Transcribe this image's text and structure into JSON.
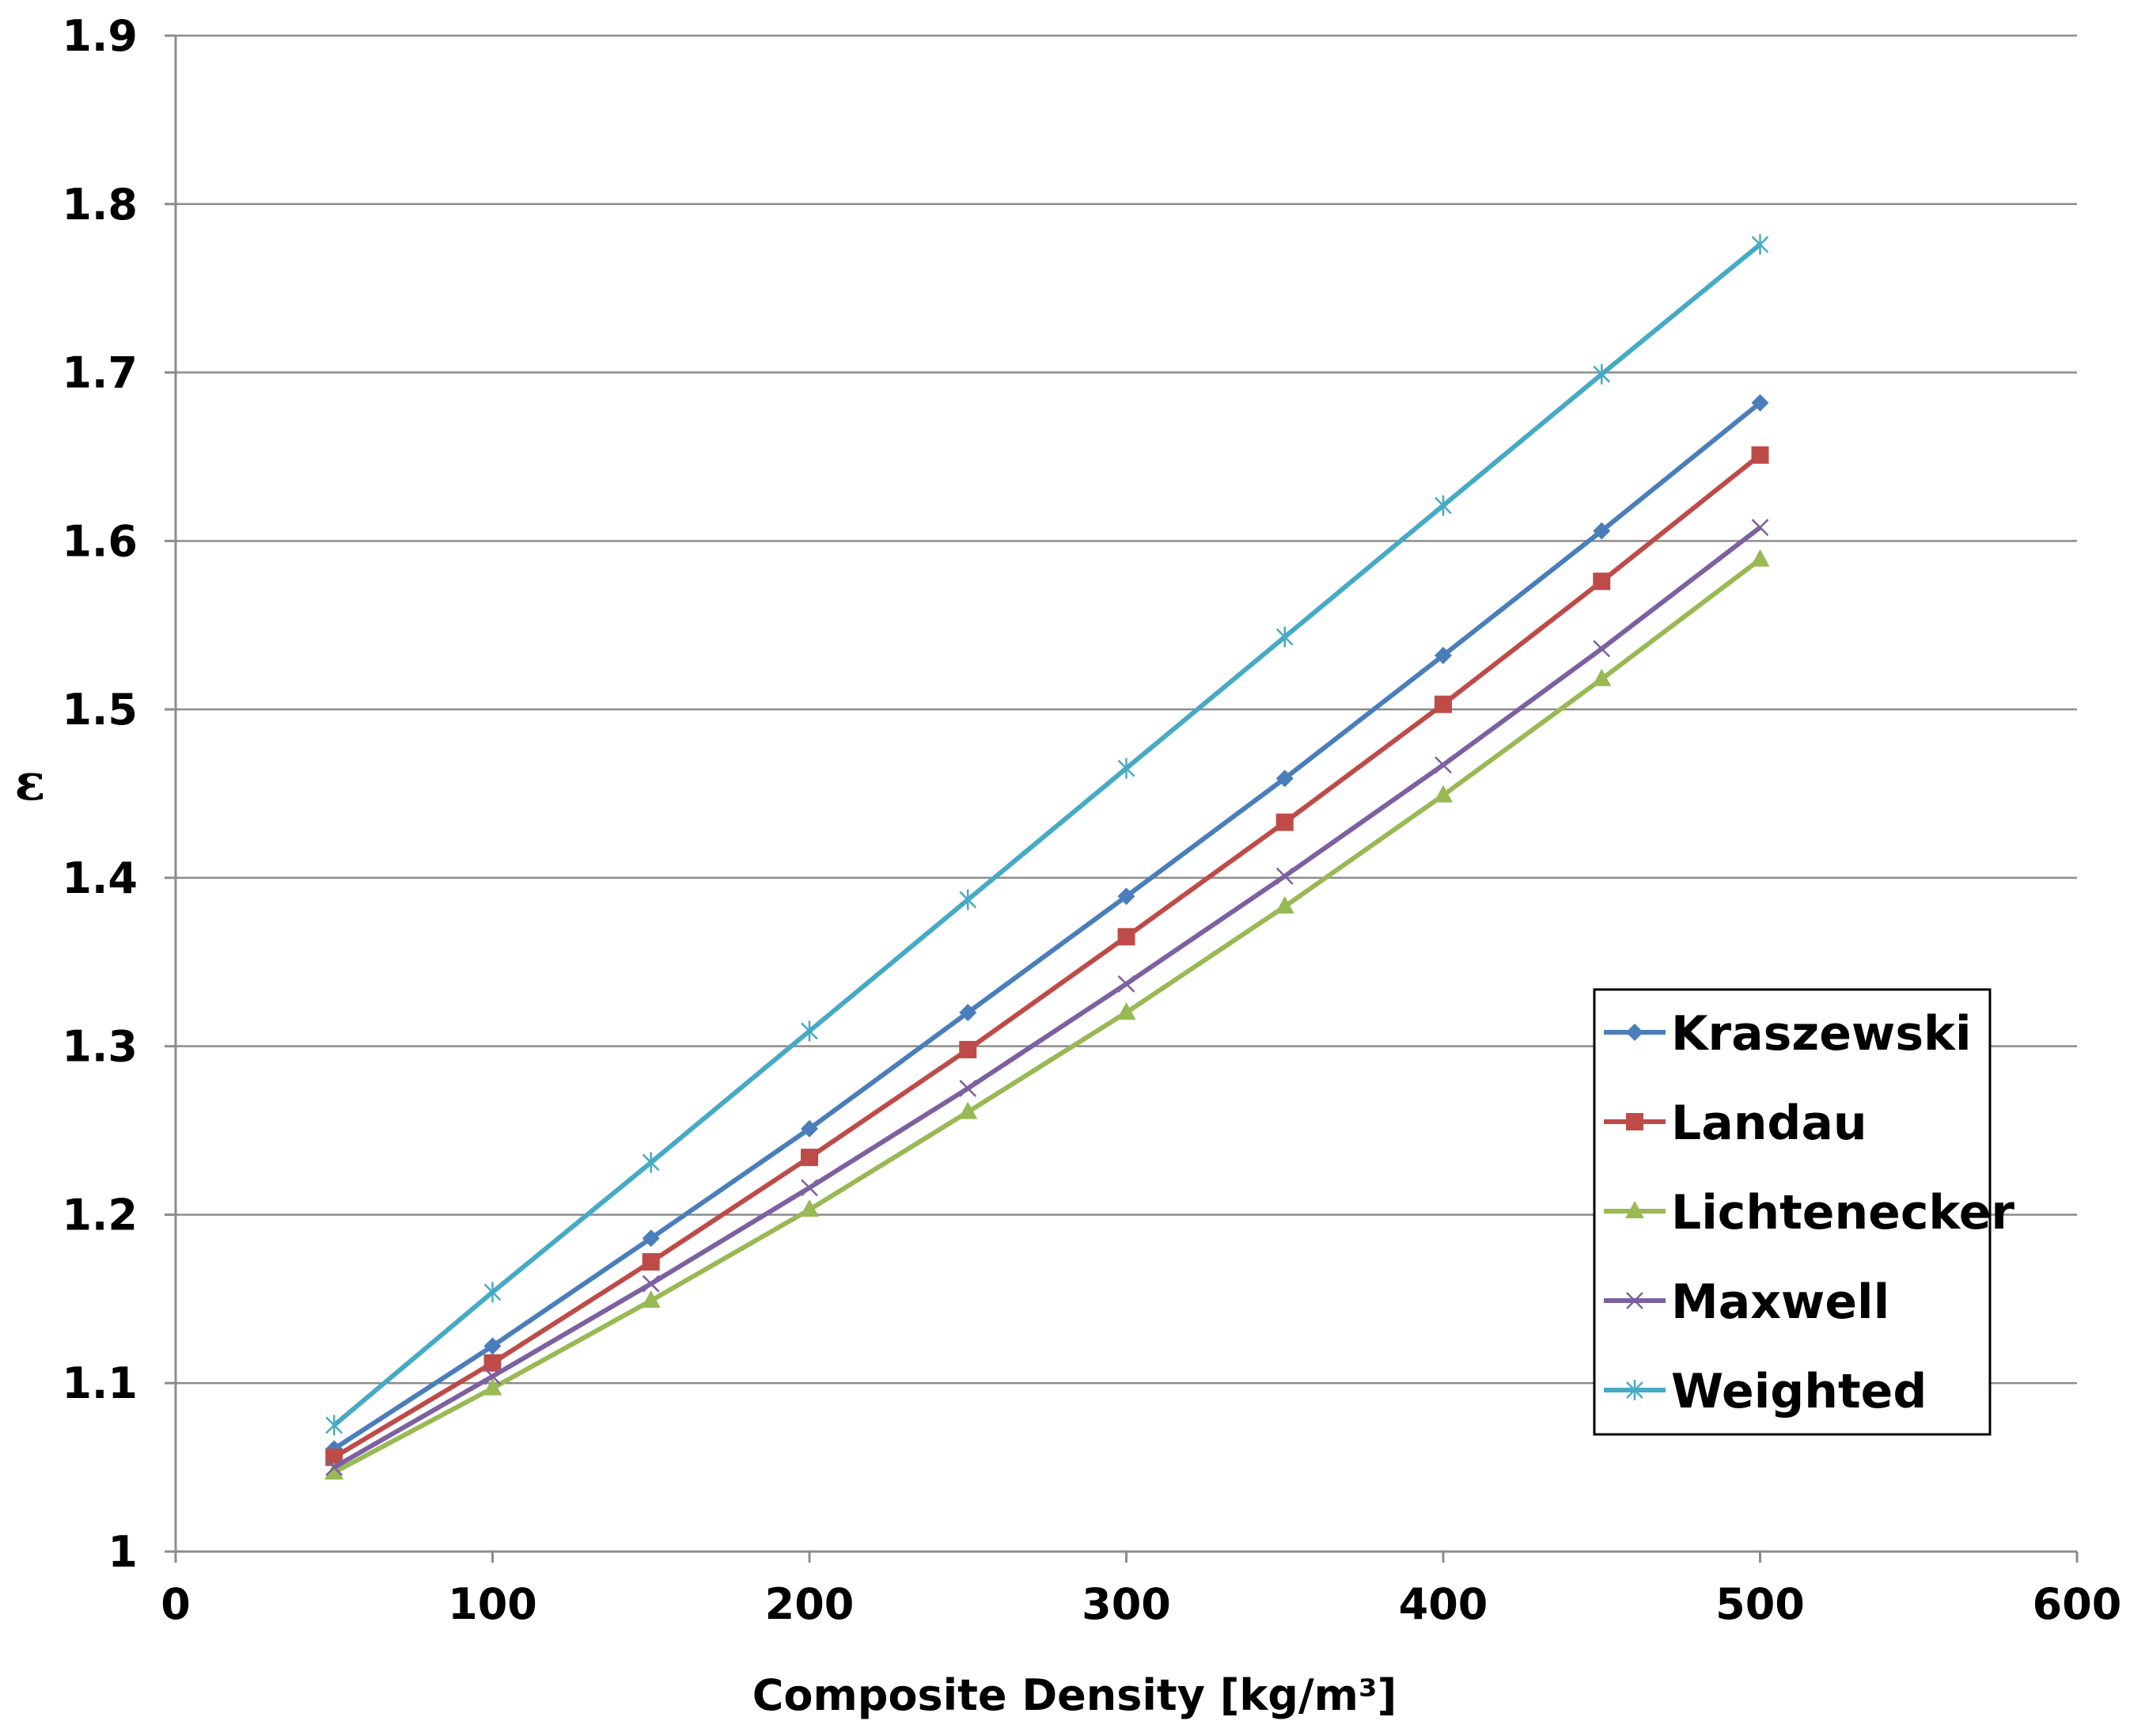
{
  "chart_data": {
    "type": "line",
    "title": "",
    "xlabel": "Composite Density [kg/m³]",
    "ylabel": "ε",
    "xlim": [
      0,
      600
    ],
    "ylim": [
      1,
      1.9
    ],
    "x_ticks": [
      "0",
      "100",
      "200",
      "300",
      "400",
      "500",
      "600"
    ],
    "y_ticks": [
      "1",
      "1.1",
      "1.2",
      "1.3",
      "1.4",
      "1.5",
      "1.6",
      "1.7",
      "1.8",
      "1.9"
    ],
    "grid": true,
    "legend_position": "right",
    "x": [
      50,
      100,
      150,
      200,
      250,
      300,
      350,
      400,
      450,
      500
    ],
    "series": [
      {
        "name": "Kraszewski",
        "color": "#4a7ebb",
        "marker": "diamond",
        "values": [
          1.061,
          1.122,
          1.186,
          1.251,
          1.32,
          1.389,
          1.459,
          1.532,
          1.606,
          1.682
        ]
      },
      {
        "name": "Landau",
        "color": "#be4b48",
        "marker": "square",
        "values": [
          1.056,
          1.112,
          1.172,
          1.234,
          1.298,
          1.365,
          1.433,
          1.503,
          1.576,
          1.651
        ]
      },
      {
        "name": "Lichtenecker",
        "color": "#98b954",
        "marker": "triangle",
        "values": [
          1.047,
          1.097,
          1.149,
          1.203,
          1.261,
          1.32,
          1.383,
          1.449,
          1.518,
          1.589
        ]
      },
      {
        "name": "Maxwell",
        "color": "#7d60a0",
        "marker": "x",
        "values": [
          1.05,
          1.104,
          1.159,
          1.216,
          1.275,
          1.337,
          1.401,
          1.467,
          1.536,
          1.608
        ]
      },
      {
        "name": "Weighted",
        "color": "#46aac5",
        "marker": "star",
        "values": [
          1.075,
          1.154,
          1.231,
          1.309,
          1.387,
          1.465,
          1.543,
          1.621,
          1.699,
          1.776
        ]
      }
    ]
  }
}
